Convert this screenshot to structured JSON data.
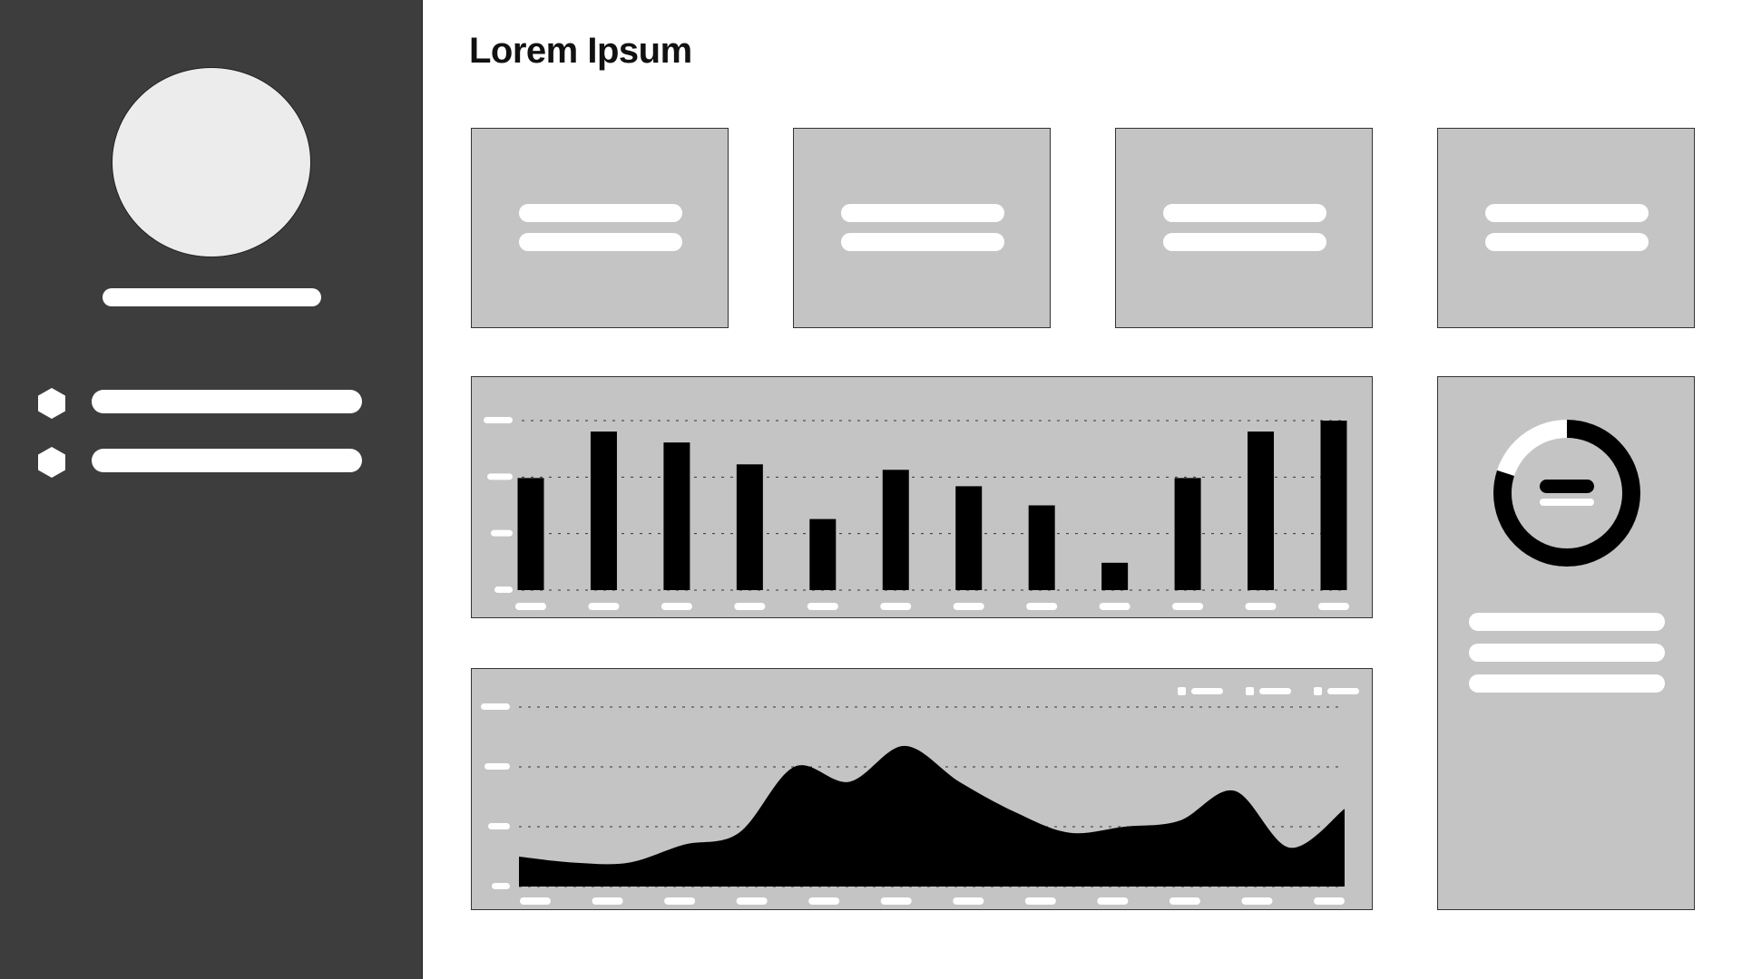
{
  "page": {
    "title": "Lorem Ipsum"
  },
  "sidebar": {
    "avatar_icon": "avatar-placeholder",
    "items": [
      {
        "icon": "hexagon-icon"
      },
      {
        "icon": "hexagon-icon"
      }
    ]
  },
  "stat_cards": [
    {
      "icon": "none"
    },
    {
      "icon": "none"
    },
    {
      "icon": "none"
    },
    {
      "icon": "none"
    }
  ],
  "chart_data": [
    {
      "type": "bar",
      "values": [
        41,
        58,
        54,
        46,
        26,
        44,
        38,
        31,
        10,
        41,
        58,
        62
      ],
      "ylim": [
        0,
        62
      ],
      "grid": true,
      "gridlines": 4
    },
    {
      "type": "area",
      "values": [
        10,
        8,
        8,
        14,
        18,
        40,
        35,
        47,
        35,
        25,
        18,
        20,
        22,
        32,
        13,
        26
      ],
      "ylim": [
        0,
        60
      ],
      "grid": true,
      "gridlines": 4,
      "legend": "top-right",
      "legend_entries": 3
    }
  ],
  "donut": {
    "fraction": 0.8,
    "colors": {
      "filled": "#000000",
      "track": "#ffffff"
    }
  },
  "colors": {
    "sidebar": "#3d3d3d",
    "card": "#c4c4c4",
    "mark": "#000000",
    "placeholder": "#ffffff"
  }
}
